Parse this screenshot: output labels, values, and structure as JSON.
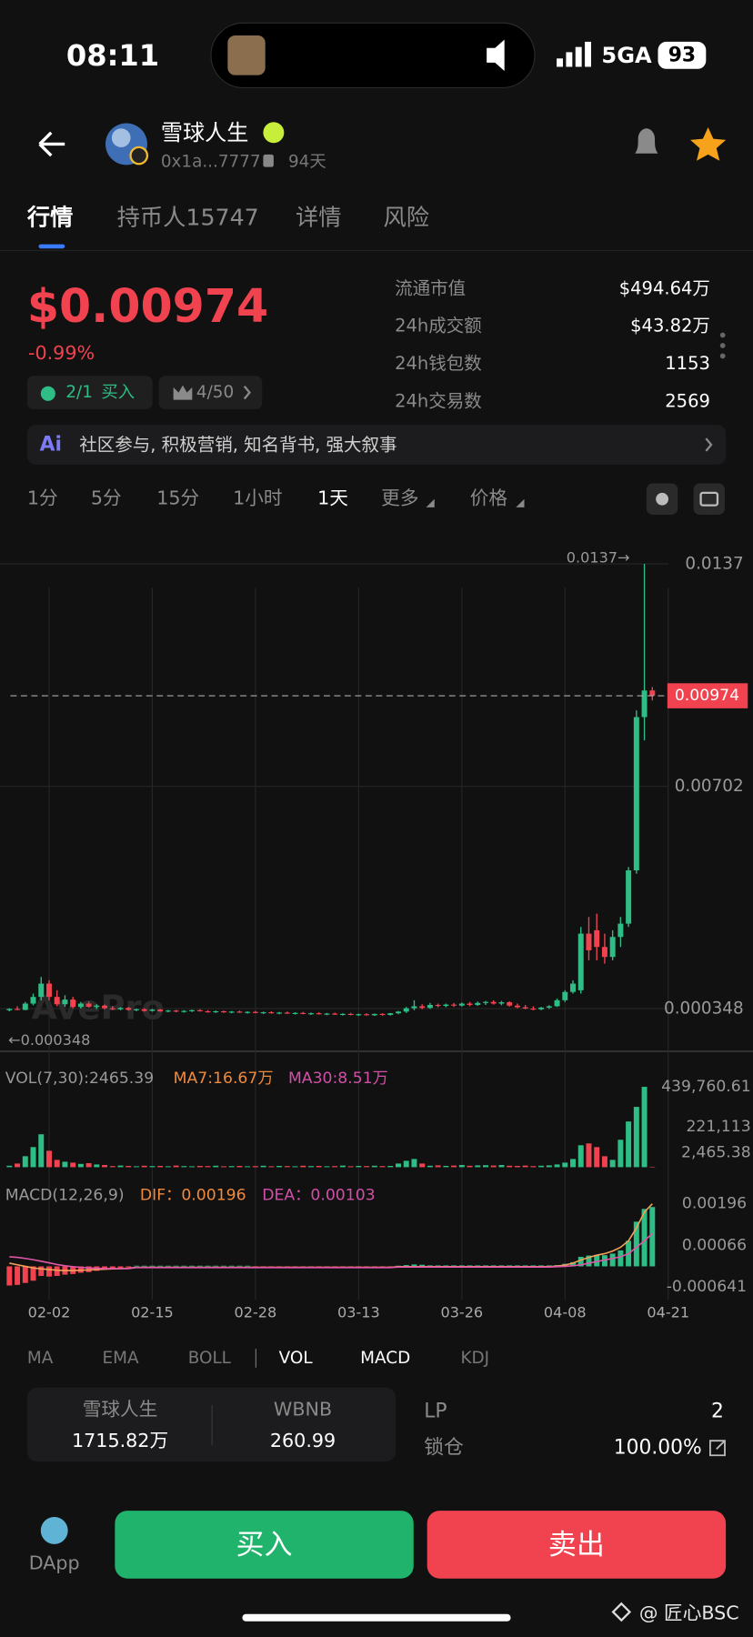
{
  "status_bar": {
    "time": "08:11",
    "network": "5GA",
    "battery": "93"
  },
  "header": {
    "name": "雪球人生",
    "address": "0x1a...7777",
    "age": "94天"
  },
  "tabs": [
    "行情",
    "持币人15747",
    "详情",
    "风险"
  ],
  "price": {
    "value": "$0.00974",
    "change": "-0.99%"
  },
  "badges": {
    "buy_ratio": "2/1",
    "buy_label": "买入",
    "rank": "4/50"
  },
  "stats": [
    {
      "label": "流通市值",
      "value": "$494.64万"
    },
    {
      "label": "24h成交额",
      "value": "$43.82万"
    },
    {
      "label": "24h钱包数",
      "value": 1153
    },
    {
      "label": "24h交易数",
      "value": 2569
    }
  ],
  "ai_banner": "社区参与, 积极营销, 知名背书, 强大叙事",
  "intervals": [
    "1分",
    "5分",
    "15分",
    "1小时",
    "1天",
    "更多",
    "价格"
  ],
  "kline": {
    "type": "candlestick",
    "watermark": "AvePro",
    "up_color": "#2ebd85",
    "down_color": "#f0434f",
    "ylim": [
      -0.00087,
      0.01433
    ],
    "yticks": [
      0.0137,
      0.00702,
      0.000348
    ],
    "current_price": 0.00974,
    "max_marker": {
      "value": 0.0137,
      "label": "0.0137→"
    },
    "min_marker": {
      "value": 0.000348,
      "label": "←0.000348"
    },
    "xticks": [
      {
        "value": 5,
        "label": "02-02"
      },
      {
        "value": 18,
        "label": "02-15"
      },
      {
        "value": 31,
        "label": "02-28"
      },
      {
        "value": 44,
        "label": "03-13"
      },
      {
        "value": 57,
        "label": "03-26"
      },
      {
        "value": 70,
        "label": "04-08"
      },
      {
        "value": 83,
        "label": "04-21"
      }
    ],
    "candles": [
      [
        0.0003,
        0.00036,
        0.00027,
        0.00034
      ],
      [
        0.00034,
        0.00042,
        0.0003,
        0.00031
      ],
      [
        0.00031,
        0.00055,
        0.0003,
        0.0005
      ],
      [
        0.0005,
        0.0008,
        0.00045,
        0.0007
      ],
      [
        0.0007,
        0.0013,
        0.0006,
        0.0011
      ],
      [
        0.0011,
        0.0012,
        0.0006,
        0.0007
      ],
      [
        0.0007,
        0.0009,
        0.00042,
        0.00048
      ],
      [
        0.00048,
        0.00075,
        0.0004,
        0.00062
      ],
      [
        0.00062,
        0.0007,
        0.00036,
        0.0004
      ],
      [
        0.0004,
        0.00055,
        0.00035,
        0.0005
      ],
      [
        0.0005,
        0.00056,
        0.00038,
        0.0004
      ],
      [
        0.0004,
        0.00048,
        0.00034,
        0.00044
      ],
      [
        0.00044,
        0.00047,
        0.00033,
        0.00036
      ],
      [
        0.00036,
        0.00042,
        0.00031,
        0.00033
      ],
      [
        0.00033,
        0.00039,
        0.0003,
        0.00037
      ],
      [
        0.00037,
        0.0004,
        0.00029,
        0.00031
      ],
      [
        0.00031,
        0.00035,
        0.00027,
        0.00033
      ],
      [
        0.00033,
        0.00036,
        0.00026,
        0.00028
      ],
      [
        0.00028,
        0.00034,
        0.00026,
        0.00032
      ],
      [
        0.00032,
        0.00034,
        0.00025,
        0.00027
      ],
      [
        0.00027,
        0.00031,
        0.00024,
        0.00029
      ],
      [
        0.00029,
        0.00031,
        0.00024,
        0.00026
      ],
      [
        0.00026,
        0.0003,
        0.00023,
        0.00028
      ],
      [
        0.00028,
        0.00032,
        0.00025,
        0.0003
      ],
      [
        0.0003,
        0.00033,
        0.00026,
        0.00027
      ],
      [
        0.00027,
        0.0003,
        0.00023,
        0.00025
      ],
      [
        0.00025,
        0.00029,
        0.00022,
        0.00027
      ],
      [
        0.00027,
        0.00029,
        0.00022,
        0.00024
      ],
      [
        0.00024,
        0.00028,
        0.00021,
        0.00026
      ],
      [
        0.00026,
        0.00029,
        0.00022,
        0.00023
      ],
      [
        0.00023,
        0.00027,
        0.0002,
        0.00025
      ],
      [
        0.00025,
        0.00028,
        0.00021,
        0.00022
      ],
      [
        0.00022,
        0.00026,
        0.00019,
        0.00024
      ],
      [
        0.00024,
        0.00027,
        0.0002,
        0.00021
      ],
      [
        0.00021,
        0.00025,
        0.00018,
        0.00023
      ],
      [
        0.00023,
        0.00026,
        0.00019,
        0.0002
      ],
      [
        0.0002,
        0.00024,
        0.00017,
        0.00022
      ],
      [
        0.00022,
        0.00025,
        0.00018,
        0.00019
      ],
      [
        0.00019,
        0.00023,
        0.00016,
        0.00021
      ],
      [
        0.00021,
        0.00024,
        0.00017,
        0.00018
      ],
      [
        0.00018,
        0.00022,
        0.00015,
        0.0002
      ],
      [
        0.0002,
        0.00023,
        0.00016,
        0.00017
      ],
      [
        0.00017,
        0.00021,
        0.00014,
        0.00019
      ],
      [
        0.00019,
        0.00022,
        0.00015,
        0.00016
      ],
      [
        0.00016,
        0.0002,
        0.00013,
        0.00018
      ],
      [
        0.00018,
        0.00021,
        0.00014,
        0.00015
      ],
      [
        0.00015,
        0.0002,
        0.00013,
        0.00019
      ],
      [
        0.00019,
        0.00021,
        0.00014,
        0.00016
      ],
      [
        0.00016,
        0.00022,
        0.00014,
        0.00021
      ],
      [
        0.00021,
        0.00028,
        0.00018,
        0.00026
      ],
      [
        0.00026,
        0.0004,
        0.00022,
        0.00036
      ],
      [
        0.00036,
        0.0006,
        0.0003,
        0.00042
      ],
      [
        0.00042,
        0.00048,
        0.00033,
        0.00037
      ],
      [
        0.00037,
        0.00052,
        0.00034,
        0.00046
      ],
      [
        0.00046,
        0.0005,
        0.00039,
        0.00043
      ],
      [
        0.00043,
        0.0005,
        0.00039,
        0.00047
      ],
      [
        0.00047,
        0.00052,
        0.0004,
        0.00044
      ],
      [
        0.00044,
        0.00053,
        0.00041,
        0.0005
      ],
      [
        0.0005,
        0.00055,
        0.00042,
        0.00046
      ],
      [
        0.00046,
        0.00056,
        0.00043,
        0.00052
      ],
      [
        0.00052,
        0.00058,
        0.00046,
        0.00055
      ],
      [
        0.00055,
        0.0006,
        0.00047,
        0.0005
      ],
      [
        0.0005,
        0.00058,
        0.00045,
        0.00054
      ],
      [
        0.00054,
        0.00057,
        0.00041,
        0.00044
      ],
      [
        0.00044,
        0.0005,
        0.00036,
        0.00039
      ],
      [
        0.00039,
        0.00046,
        0.00033,
        0.00035
      ],
      [
        0.00035,
        0.00042,
        0.0003,
        0.00033
      ],
      [
        0.00033,
        0.0004,
        0.0003,
        0.00038
      ],
      [
        0.00038,
        0.00045,
        0.00034,
        0.00042
      ],
      [
        0.00042,
        0.00065,
        0.0004,
        0.0006
      ],
      [
        0.0006,
        0.0009,
        0.00055,
        0.00085
      ],
      [
        0.00085,
        0.0012,
        0.0008,
        0.0011
      ],
      [
        0.0009,
        0.0028,
        0.0008,
        0.0026
      ],
      [
        0.0026,
        0.0031,
        0.0018,
        0.0021
      ],
      [
        0.0027,
        0.0032,
        0.0018,
        0.0022
      ],
      [
        0.0022,
        0.0026,
        0.0017,
        0.0019
      ],
      [
        0.0019,
        0.0027,
        0.0018,
        0.0025
      ],
      [
        0.0025,
        0.0031,
        0.0022,
        0.0029
      ],
      [
        0.0029,
        0.0046,
        0.0028,
        0.0045
      ],
      [
        0.0045,
        0.0093,
        0.0044,
        0.0091
      ],
      [
        0.0091,
        0.0137,
        0.0084,
        0.0099
      ],
      [
        0.0099,
        0.01,
        0.0096,
        0.00974
      ]
    ]
  },
  "volume": {
    "label": "VOL(7,30):2465.39",
    "ma7": "MA7:16.67万",
    "ma30": "MA30:8.51万",
    "ylim": [
      0,
      439760.61
    ],
    "yticks": [
      {
        "value": 439760.61,
        "label": "439,760.61"
      },
      {
        "value": 221113,
        "label": "221,113"
      },
      {
        "value": 2465.38,
        "label": "2,465.38"
      }
    ],
    "values": [
      8000,
      20000,
      60000,
      110000,
      180000,
      90000,
      40000,
      30000,
      25000,
      18000,
      22000,
      15000,
      12000,
      6000,
      9000,
      7000,
      5000,
      8000,
      6000,
      7000,
      5000,
      9000,
      6000,
      5000,
      7000,
      6000,
      8000,
      5000,
      6000,
      7000,
      5000,
      6000,
      8000,
      5000,
      7000,
      6000,
      5000,
      8000,
      6000,
      7000,
      5000,
      6000,
      9000,
      5000,
      7000,
      6000,
      8000,
      6000,
      7000,
      20000,
      35000,
      45000,
      20000,
      8000,
      10000,
      7000,
      9000,
      12000,
      8000,
      10000,
      11000,
      9000,
      12000,
      8000,
      7000,
      9000,
      6000,
      8000,
      10000,
      15000,
      25000,
      45000,
      120000,
      130000,
      110000,
      60000,
      40000,
      150000,
      250000,
      330000,
      439760.61,
      2465.39
    ]
  },
  "macd": {
    "label": "MACD(12,26,9)",
    "dif_label": "DIF：0.00196",
    "dea_label": "DEA：0.00103",
    "dif_color": "#f5a05a",
    "dea_color": "#e056a8",
    "ylim": [
      -0.00072,
      0.00229
    ],
    "yticks": [
      0.00196,
      0.00066,
      -0.000641
    ],
    "hist": [
      -0.0006,
      -0.00058,
      -0.00052,
      -0.00045,
      -0.0003,
      -0.00032,
      -0.0003,
      -0.00026,
      -0.00024,
      -0.0002,
      -0.00018,
      -0.00014,
      -0.0001,
      -7e-05,
      -5e-05,
      -3e-05,
      2e-05,
      2e-05,
      2e-05,
      2e-05,
      2e-05,
      2e-05,
      2e-05,
      2e-05,
      2e-05,
      2e-05,
      2e-05,
      2e-05,
      2e-05,
      2e-05,
      2e-05,
      -1e-05,
      -1e-05,
      -1e-05,
      -1e-05,
      -1e-05,
      -1e-05,
      -1e-05,
      -1e-05,
      -1e-05,
      -1e-05,
      -1e-05,
      -1e-05,
      -1e-05,
      -1e-05,
      -1e-05,
      -1e-05,
      -1e-05,
      -1e-05,
      2e-05,
      4e-05,
      6e-05,
      5e-05,
      3e-05,
      3e-05,
      3e-05,
      3e-05,
      3e-05,
      3e-05,
      3e-05,
      3e-05,
      3e-05,
      3e-05,
      3e-05,
      3e-05,
      3e-05,
      3e-05,
      3e-05,
      3e-05,
      4e-05,
      8e-05,
      0.00013,
      0.0003,
      0.00034,
      0.00036,
      0.00035,
      0.0004,
      0.0005,
      0.0008,
      0.0014,
      0.0018,
      0.00186
    ],
    "dif": [
      0.0001,
      5e-05,
      0,
      -5e-05,
      -8e-05,
      -0.0001,
      -0.00012,
      -0.00013,
      -0.00013,
      -0.00012,
      -0.00011,
      -0.0001,
      -9e-05,
      -8e-05,
      -7e-05,
      -6e-05,
      -3e-05,
      -3e-05,
      -3e-05,
      -3e-05,
      -3e-05,
      -3e-05,
      -3e-05,
      -3e-05,
      -3e-05,
      -3e-05,
      -3e-05,
      -3e-05,
      -3e-05,
      -3e-05,
      -3e-05,
      -3e-05,
      -3e-05,
      -3e-05,
      -3e-05,
      -3e-05,
      -3e-05,
      -3e-05,
      -3e-05,
      -3e-05,
      -3e-05,
      -3e-05,
      -3e-05,
      -3e-05,
      -3e-05,
      -3e-05,
      -3e-05,
      -3e-05,
      -3e-05,
      -1e-05,
      -1e-05,
      -1e-05,
      -1e-05,
      -1e-05,
      -1e-05,
      -1e-05,
      -1e-05,
      -1e-05,
      -1e-05,
      -1e-05,
      -1e-05,
      -1e-05,
      -1e-05,
      -1e-05,
      -1e-05,
      -1e-05,
      -1e-05,
      -1e-05,
      -1e-05,
      1e-05,
      4e-05,
      0.0001,
      0.0002,
      0.00028,
      0.00035,
      0.0004,
      0.00048,
      0.0006,
      0.0008,
      0.0012,
      0.0017,
      0.00196
    ],
    "dea": [
      0.0003,
      0.00028,
      0.00025,
      0.00021,
      0.00016,
      0.00011,
      6e-05,
      2e-05,
      -1e-05,
      -3e-05,
      -5e-05,
      -6e-05,
      -7e-05,
      -7e-05,
      -7e-05,
      -7e-05,
      -4e-05,
      -4e-05,
      -4e-05,
      -4e-05,
      -4e-05,
      -4e-05,
      -4e-05,
      -4e-05,
      -4e-05,
      -4e-05,
      -4e-05,
      -4e-05,
      -4e-05,
      -4e-05,
      -4e-05,
      -4e-05,
      -4e-05,
      -4e-05,
      -4e-05,
      -4e-05,
      -4e-05,
      -4e-05,
      -4e-05,
      -4e-05,
      -4e-05,
      -4e-05,
      -4e-05,
      -4e-05,
      -4e-05,
      -4e-05,
      -4e-05,
      -4e-05,
      -4e-05,
      -2e-05,
      -2e-05,
      -2e-05,
      -2e-05,
      -2e-05,
      -2e-05,
      -2e-05,
      -2e-05,
      -2e-05,
      -2e-05,
      -2e-05,
      -2e-05,
      -2e-05,
      -2e-05,
      -2e-05,
      -2e-05,
      -2e-05,
      -2e-05,
      -2e-05,
      -2e-05,
      -1e-05,
      0,
      2e-05,
      5e-05,
      0.0001,
      0.00015,
      0.0002,
      0.00025,
      0.0003,
      0.0004,
      0.0006,
      0.0008,
      0.00103
    ]
  },
  "indicator_tabs": [
    "MA",
    "EMA",
    "BOLL",
    "VOL",
    "MACD",
    "KDJ"
  ],
  "pool": {
    "token_a": "雪球人生",
    "amount_a": "1715.82万",
    "token_b": "WBNB",
    "amount_b": 260.99,
    "lp_label": "LP",
    "lp_value": 2,
    "lock_label": "锁仓",
    "lock_value": "100.00%"
  },
  "bottom": {
    "dapp": "DApp",
    "buy": "买入",
    "sell": "卖出",
    "watermark": "@ 匠心BSC"
  }
}
